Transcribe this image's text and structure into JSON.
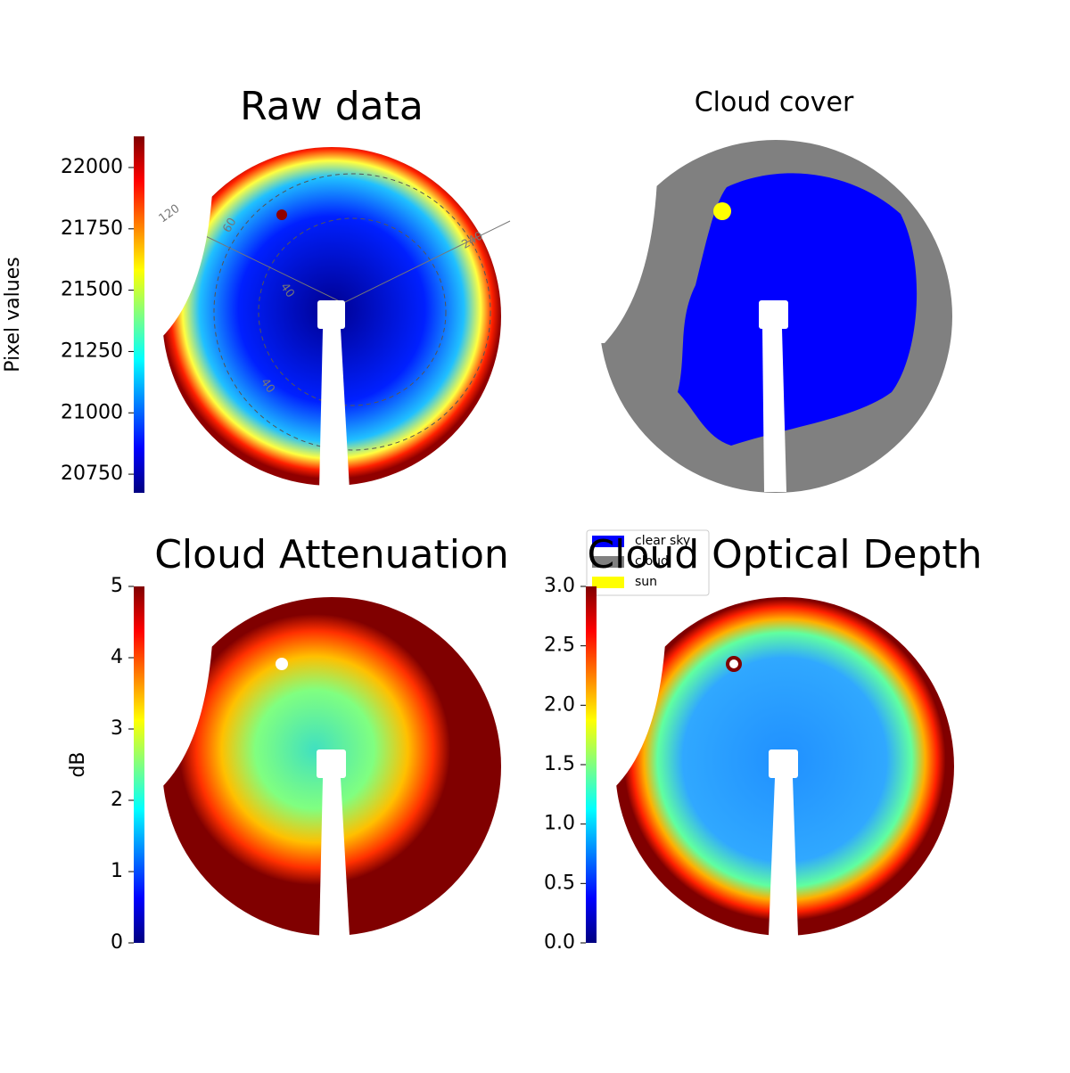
{
  "chart_data": [
    {
      "type": "image",
      "title": "Raw data",
      "colorbar_label": "Pixel values",
      "colormap": "jet",
      "ylim": [
        20674,
        22127
      ],
      "yticks": [
        20750,
        21000,
        21250,
        21500,
        21750,
        22000
      ],
      "grid_labels": [
        "120",
        "60",
        "240",
        "40",
        "40"
      ]
    },
    {
      "type": "image",
      "title": "Cloud cover",
      "series": [
        {
          "name": "clear sky",
          "color": "#0000ff"
        },
        {
          "name": "cloud",
          "color": "#808080"
        },
        {
          "name": "sun",
          "color": "#ffff00"
        }
      ]
    },
    {
      "type": "image",
      "title": "Cloud Attenuation",
      "colorbar_label": "dB",
      "colormap": "jet",
      "ylim": [
        0,
        5
      ],
      "yticks": [
        0,
        1,
        2,
        3,
        4,
        5
      ]
    },
    {
      "type": "image",
      "title": "Cloud Optical Depth",
      "colormap": "jet",
      "ylim": [
        0,
        3
      ],
      "yticks": [
        {
          "value": 0,
          "label": "0.0"
        },
        0.5,
        {
          "value": 1,
          "label": "1.0"
        },
        1.5,
        {
          "value": 2,
          "label": "2.0"
        },
        2.5,
        {
          "value": 3,
          "label": "3.0"
        }
      ]
    }
  ]
}
